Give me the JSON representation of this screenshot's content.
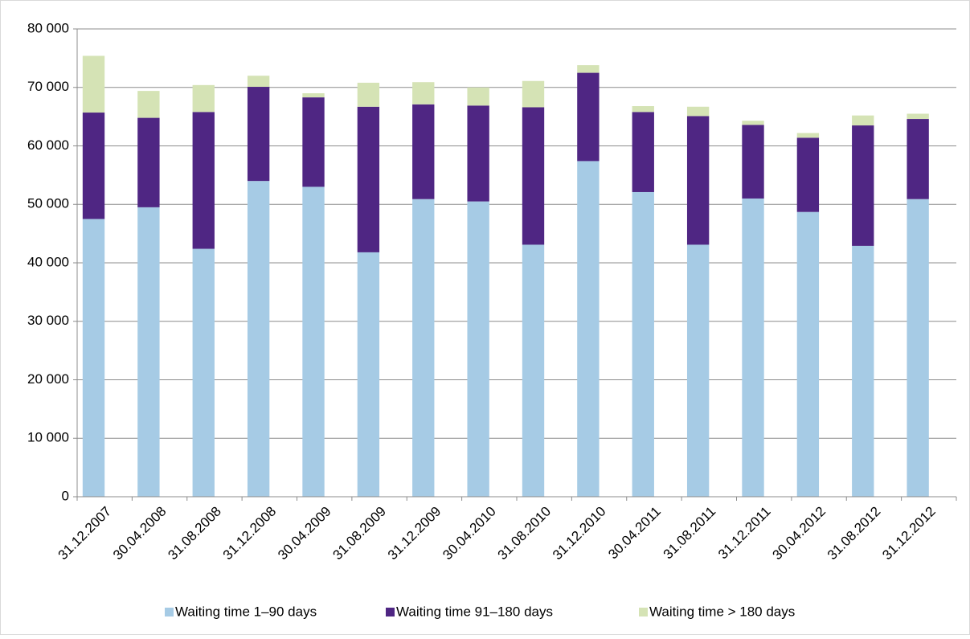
{
  "chart_data": {
    "type": "stacked_bar",
    "categories": [
      "31.12.2007",
      "30.04.2008",
      "31.08.2008",
      "31.12.2008",
      "30.04.2009",
      "31.08.2009",
      "31.12.2009",
      "30.04.2010",
      "31.08.2010",
      "31.12.2010",
      "30.04.2011",
      "31.08.2011",
      "31.12.2011",
      "30.04.2012",
      "31.08.2012",
      "31.12.2012"
    ],
    "series": [
      {
        "name": "Waiting time 1–90 days",
        "color": "#a6cbe5",
        "values": [
          47500,
          49500,
          42400,
          54000,
          53000,
          41800,
          50900,
          50500,
          43100,
          57400,
          52100,
          43100,
          51000,
          48700,
          42900,
          50900
        ]
      },
      {
        "name": "Waiting time 91–180 days",
        "color": "#4f2683",
        "values": [
          18200,
          15300,
          23400,
          16100,
          15300,
          24900,
          16200,
          16400,
          23500,
          15100,
          13700,
          22000,
          12600,
          12700,
          20600,
          13700
        ]
      },
      {
        "name": "Waiting time > 180 days",
        "color": "#d5e3b5",
        "values": [
          9700,
          4600,
          4600,
          1900,
          700,
          4100,
          3800,
          3100,
          4500,
          1300,
          1000,
          1600,
          700,
          800,
          1700,
          900
        ]
      }
    ],
    "ylim": [
      0,
      80000
    ],
    "yticks": [
      0,
      {
        "value": 10000,
        "label": "10 000"
      },
      {
        "value": 20000,
        "label": "20 000"
      },
      {
        "value": 30000,
        "label": "30 000"
      },
      {
        "value": 40000,
        "label": "40 000"
      },
      {
        "value": 50000,
        "label": "50 000"
      },
      {
        "value": 60000,
        "label": "60 000"
      },
      {
        "value": 70000,
        "label": "70 000"
      },
      {
        "value": 80000,
        "label": "80 000"
      }
    ],
    "grid": true,
    "legend": "bottom"
  }
}
